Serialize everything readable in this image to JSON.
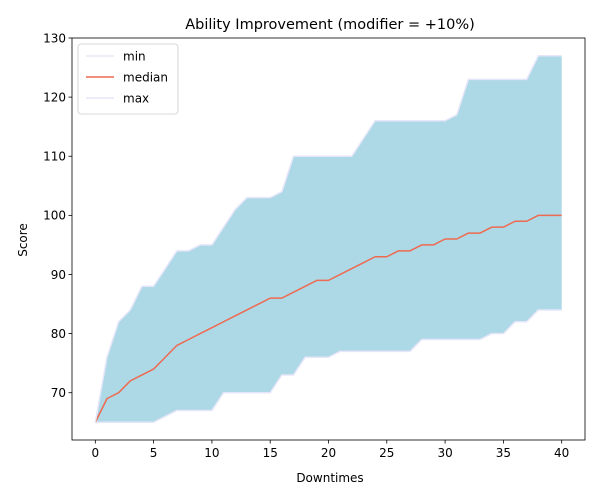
{
  "chart_data": {
    "type": "area",
    "title": "Ability Improvement (modifier = +10%)",
    "xlabel": "Downtimes",
    "ylabel": "Score",
    "xlim": [
      -2,
      42
    ],
    "ylim": [
      62,
      130
    ],
    "xticks": [
      0,
      5,
      10,
      15,
      20,
      25,
      30,
      35,
      40
    ],
    "yticks": [
      70,
      80,
      90,
      100,
      110,
      120,
      130
    ],
    "grid": false,
    "legend_position": "top-left",
    "fill_color": "#add8e6",
    "x": [
      0,
      1,
      2,
      3,
      4,
      5,
      6,
      7,
      8,
      9,
      10,
      11,
      12,
      13,
      14,
      15,
      16,
      17,
      18,
      19,
      20,
      21,
      22,
      23,
      24,
      25,
      26,
      27,
      28,
      29,
      30,
      31,
      32,
      33,
      34,
      35,
      36,
      37,
      38,
      39,
      40
    ],
    "series": [
      {
        "name": "min",
        "color": "#e6e6fa",
        "values": [
          65,
          65,
          65,
          65,
          65,
          65,
          66,
          67,
          67,
          67,
          67,
          70,
          70,
          70,
          70,
          70,
          73,
          73,
          76,
          76,
          76,
          77,
          77,
          77,
          77,
          77,
          77,
          77,
          79,
          79,
          79,
          79,
          79,
          79,
          80,
          80,
          82,
          82,
          84,
          84,
          84
        ]
      },
      {
        "name": "median",
        "color": "#ee6a50",
        "values": [
          65,
          69,
          70,
          72,
          73,
          74,
          76,
          78,
          79,
          80,
          81,
          82,
          83,
          84,
          85,
          86,
          86,
          87,
          88,
          89,
          89,
          90,
          91,
          92,
          93,
          93,
          94,
          94,
          95,
          95,
          96,
          96,
          97,
          97,
          98,
          98,
          99,
          99,
          100,
          100,
          100
        ]
      },
      {
        "name": "max",
        "color": "#e6e6fa",
        "values": [
          65,
          76,
          82,
          84,
          88,
          88,
          91,
          94,
          94,
          95,
          95,
          98,
          101,
          103,
          103,
          103,
          104,
          110,
          110,
          110,
          110,
          110,
          110,
          113,
          116,
          116,
          116,
          116,
          116,
          116,
          116,
          117,
          123,
          123,
          123,
          123,
          123,
          123,
          127,
          127,
          127
        ]
      }
    ]
  }
}
